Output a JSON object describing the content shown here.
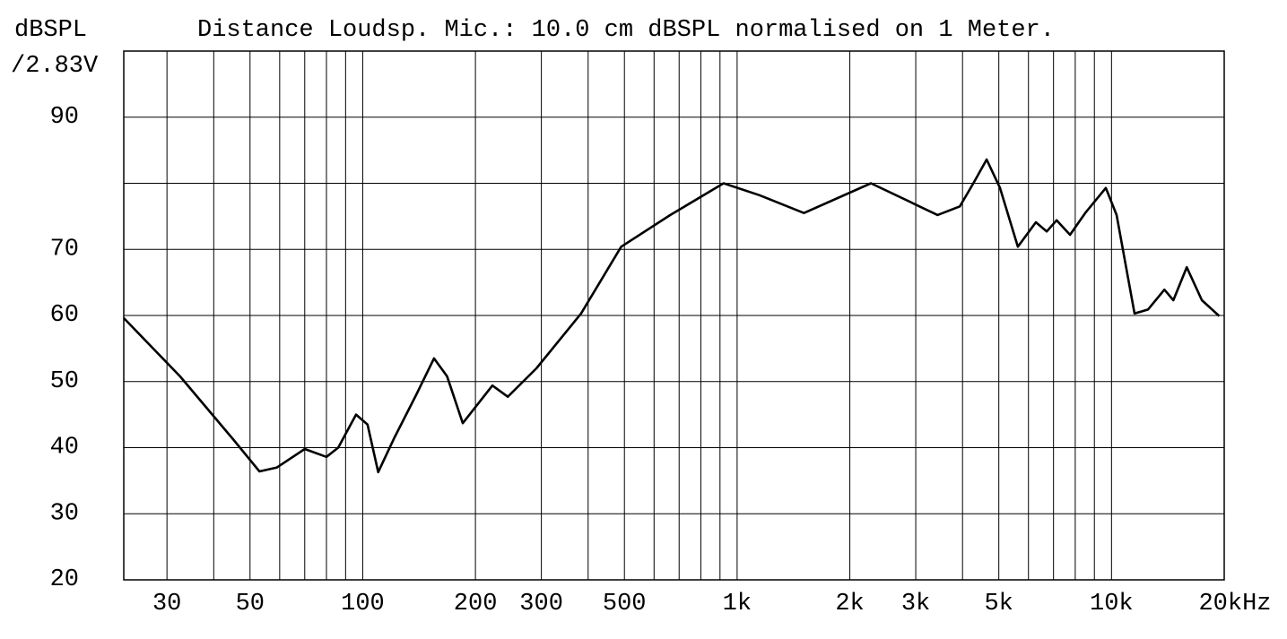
{
  "chart_data": {
    "type": "line",
    "title": "Distance Loudsp. Mic.:  10.0 cm dBSPL normalised on 1 Meter.",
    "ylabel": [
      "dBSPL",
      "/2.83V"
    ],
    "xscale": "log",
    "xlim": [
      23,
      20000
    ],
    "ylim": [
      20,
      100
    ],
    "xticks": [
      30,
      50,
      100,
      200,
      300,
      500,
      {
        "value": 1000,
        "label": "1k"
      },
      {
        "value": 2000,
        "label": "2k"
      },
      {
        "value": 3000,
        "label": "3k"
      },
      {
        "value": 5000,
        "label": "5k"
      },
      {
        "value": 10000,
        "label": "10k"
      },
      {
        "value": 20000,
        "label": "20kHz"
      }
    ],
    "yticks": [
      20,
      30,
      40,
      50,
      60,
      70,
      90
    ],
    "xgrid": [
      30,
      40,
      50,
      60,
      70,
      80,
      90,
      100,
      200,
      300,
      400,
      500,
      600,
      700,
      800,
      900,
      1000,
      2000,
      3000,
      4000,
      5000,
      6000,
      7000,
      8000,
      9000,
      10000,
      20000
    ],
    "ygrid": [
      20,
      30,
      40,
      50,
      60,
      70,
      80,
      90,
      100
    ],
    "grid": true,
    "x": [
      23,
      32.5,
      45,
      53,
      59,
      70,
      80,
      86,
      96,
      103,
      110,
      121,
      139,
      155,
      168,
      185,
      222,
      244,
      291,
      383,
      490,
      663,
      920,
      1147,
      1508,
      2277,
      3431,
      3934,
      4275,
      4639,
      5036,
      5622,
      6280,
      6712,
      7135,
      7748,
      8505,
      9655,
      10315,
      11520,
      12516,
      13840,
      14627,
      15880,
      17432,
      19400
    ],
    "series": [
      {
        "color": "#000000",
        "values": [
          59.6,
          50.8,
          41.3,
          36.4,
          37,
          39.8,
          38.6,
          40,
          45,
          43.5,
          36.3,
          41.3,
          48,
          53.5,
          50.8,
          43.7,
          49.4,
          47.7,
          52,
          60.3,
          70.4,
          75.2,
          80,
          78.2,
          75.5,
          80,
          75.2,
          76.5,
          80,
          83.6,
          79.3,
          70.4,
          74.1,
          72.7,
          74.4,
          72.2,
          75.5,
          79.3,
          75.2,
          60.3,
          60.9,
          63.9,
          62.3,
          67.3,
          62.3,
          59.9
        ]
      }
    ]
  }
}
